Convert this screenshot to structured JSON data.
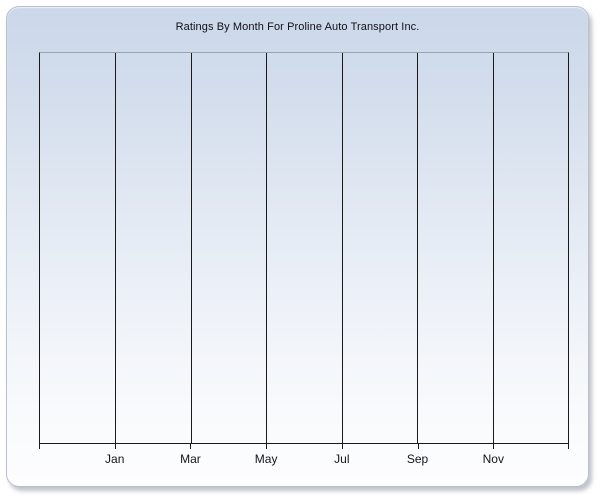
{
  "panel": {
    "background_top_color": "#cbd8ea",
    "background_bottom_color": "#fdfdfe",
    "border_color": "#b9c0ca",
    "shadow_color": "#8a929d"
  },
  "chart_data": {
    "type": "line",
    "title": "Ratings By Month For Proline Auto Transport Inc.",
    "xlabel": "",
    "ylabel": "",
    "x_axis": {
      "tick_labels": [
        "Jan",
        "Mar",
        "May",
        "Jul",
        "Sep",
        "Nov"
      ],
      "gridline_count": 8,
      "labeled_gridline_indices": [
        1,
        2,
        3,
        4,
        5,
        6
      ],
      "tick_interval": "2 months"
    },
    "y_axis": {
      "tick_labels": [],
      "labels_visible": false
    },
    "series": [],
    "legend": null,
    "grid": "vertical-major-only",
    "plot_area_empty": true,
    "gridline_color": "#1a1a1a",
    "plot_border_top_color": "#98a1ae",
    "title_color": "#101014",
    "tick_label_color": "#15151a"
  }
}
